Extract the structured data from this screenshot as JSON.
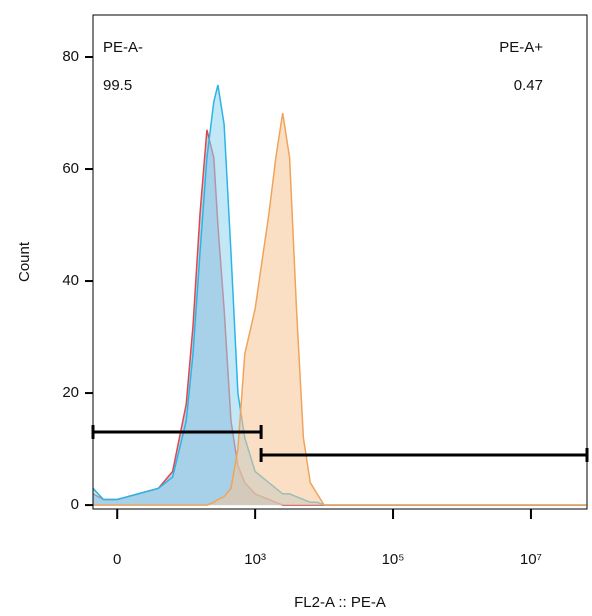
{
  "chart_data": {
    "type": "area",
    "x_label": "FL2-A :: PE-A",
    "y_label": "Count",
    "xscale": "biexponential",
    "xlim": [
      -18,
      65000000
    ],
    "xticks": [
      0,
      {
        "value": 1000,
        "label": "10³"
      },
      {
        "value": 100000,
        "label": "10⁵"
      },
      {
        "value": 10000000,
        "label": "10⁷"
      }
    ],
    "ylim": [
      -0.7,
      87.5
    ],
    "yticks": [
      0,
      20,
      40,
      60,
      80
    ],
    "x": [
      -18,
      -9.5,
      0,
      15,
      37,
      62,
      99,
      125,
      158,
      199,
      251,
      288,
      355,
      447,
      562,
      708,
      1000,
      1585,
      1995,
      2512,
      3162,
      3981,
      5012,
      6310,
      7943,
      10000,
      15849,
      31623,
      100000,
      1000000,
      63000000
    ],
    "series": [
      {
        "color": "#e0474c",
        "fill": "#8fa7c4",
        "values": [
          2,
          1,
          1,
          2,
          3,
          6,
          18,
          32,
          52,
          67,
          62,
          50,
          35,
          15,
          7,
          4,
          2,
          1,
          0.5,
          0,
          0,
          0,
          0,
          0,
          0,
          0,
          0,
          0,
          0,
          0,
          0
        ]
      },
      {
        "color": "#2bb5e6",
        "fill": "#8fd3f0",
        "values": [
          3,
          1,
          1,
          2,
          3,
          5,
          15,
          27,
          45,
          62,
          72,
          75,
          68,
          45,
          20,
          12,
          6,
          4,
          3,
          2,
          2,
          1.5,
          1,
          0.5,
          0.5,
          0,
          0,
          0,
          0,
          0,
          0
        ]
      },
      {
        "color": "#f0a45a",
        "fill": "#f7c596",
        "values": [
          0,
          0,
          0,
          0,
          0,
          0,
          0,
          0,
          0,
          0,
          0.5,
          1,
          1.5,
          3,
          10,
          27,
          35,
          52,
          62,
          70,
          62,
          35,
          12,
          4,
          2,
          0,
          0,
          0,
          0,
          0,
          0
        ]
      }
    ],
    "gates": [
      {
        "label": "PE-A-",
        "percent": 99.5,
        "range": [
          -18,
          1220
        ]
      },
      {
        "label": "PE-A+",
        "percent": 0.47,
        "range": [
          1220,
          65000000
        ]
      }
    ]
  }
}
